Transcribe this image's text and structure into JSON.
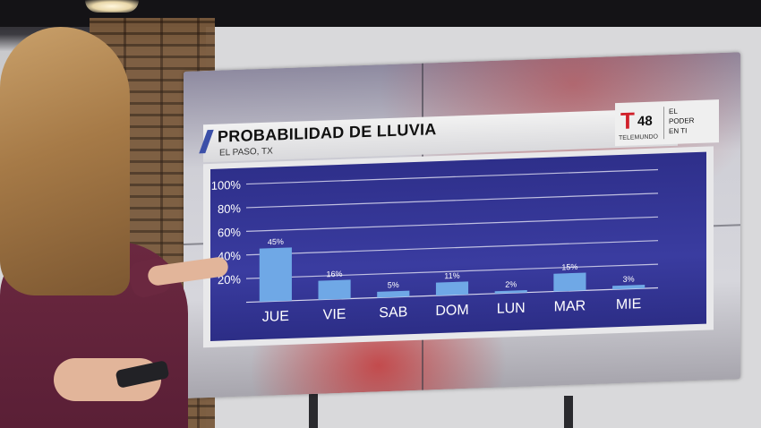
{
  "weather_graphic": {
    "title": "PROBABILIDAD DE LLUVIA",
    "subtitle": "EL PASO, TX",
    "logo": {
      "letter": "T",
      "number": "48",
      "network": "TELEMUNDO",
      "tagline": [
        "EL",
        "PODER",
        "EN TI"
      ],
      "brand_color": "#d1202a"
    }
  },
  "chart_data": {
    "type": "bar",
    "title": "PROBABILIDAD DE LLUVIA",
    "subtitle": "EL PASO, TX",
    "categories": [
      "JUE",
      "VIE",
      "SAB",
      "DOM",
      "LUN",
      "MAR",
      "MIE"
    ],
    "values": [
      45,
      16,
      5,
      11,
      2,
      15,
      3
    ],
    "value_labels": [
      "45%",
      "16%",
      "5%",
      "11%",
      "2%",
      "15%",
      "3%"
    ],
    "y_ticks": [
      "100%",
      "80%",
      "60%",
      "40%",
      "20%"
    ],
    "y_tick_values": [
      100,
      80,
      60,
      40,
      20
    ],
    "ylim": [
      0,
      100
    ],
    "grid": true,
    "bar_color": "#6fa8e6",
    "background_color": "#30328f"
  }
}
